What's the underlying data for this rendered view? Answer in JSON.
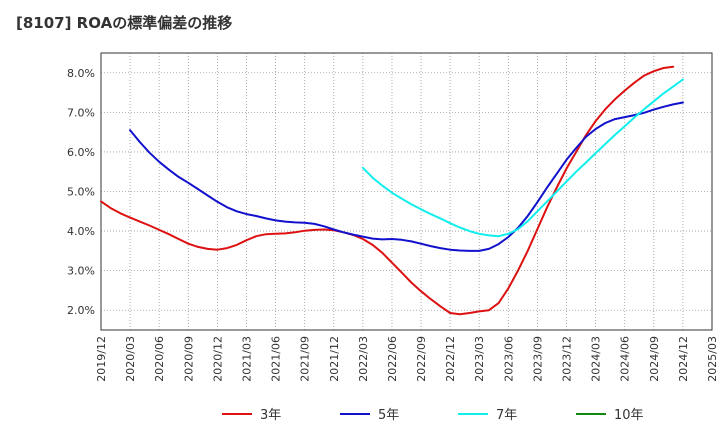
{
  "title": "[8107]  ROAの標準偏差の推移",
  "chart_data": {
    "type": "line",
    "title": "[8107]  ROAの標準偏差の推移",
    "xlabel": "",
    "ylabel": "",
    "x_ticks": [
      "2019/12",
      "2020/03",
      "2020/06",
      "2020/09",
      "2020/12",
      "2021/03",
      "2021/06",
      "2021/09",
      "2021/12",
      "2022/03",
      "2022/06",
      "2022/09",
      "2022/12",
      "2023/03",
      "2023/06",
      "2023/09",
      "2023/12",
      "2024/03",
      "2024/06",
      "2024/09",
      "2024/12",
      "2025/03"
    ],
    "y_ticks": [
      "2.0%",
      "3.0%",
      "4.0%",
      "5.0%",
      "6.0%",
      "7.0%",
      "8.0%"
    ],
    "ylim": [
      1.5,
      8.5
    ],
    "grid": true,
    "legend_position": "bottom",
    "series": [
      {
        "name": "3年",
        "color": "#dd1111",
        "points": [
          [
            "2019/12",
            4.75
          ],
          [
            "2020/01",
            4.58
          ],
          [
            "2020/02",
            4.45
          ],
          [
            "2020/03",
            4.34
          ],
          [
            "2020/04",
            4.24
          ],
          [
            "2020/05",
            4.14
          ],
          [
            "2020/06",
            4.03
          ],
          [
            "2020/07",
            3.92
          ],
          [
            "2020/08",
            3.8
          ],
          [
            "2020/09",
            3.68
          ],
          [
            "2020/10",
            3.6
          ],
          [
            "2020/11",
            3.55
          ],
          [
            "2020/12",
            3.53
          ],
          [
            "2021/01",
            3.57
          ],
          [
            "2021/02",
            3.65
          ],
          [
            "2021/03",
            3.77
          ],
          [
            "2021/04",
            3.87
          ],
          [
            "2021/05",
            3.92
          ],
          [
            "2021/06",
            3.93
          ],
          [
            "2021/07",
            3.94
          ],
          [
            "2021/08",
            3.97
          ],
          [
            "2021/09",
            4.01
          ],
          [
            "2021/10",
            4.03
          ],
          [
            "2021/11",
            4.04
          ],
          [
            "2021/12",
            4.02
          ],
          [
            "2022/01",
            3.97
          ],
          [
            "2022/02",
            3.9
          ],
          [
            "2022/03",
            3.8
          ],
          [
            "2022/04",
            3.65
          ],
          [
            "2022/05",
            3.45
          ],
          [
            "2022/06",
            3.2
          ],
          [
            "2022/07",
            2.95
          ],
          [
            "2022/08",
            2.7
          ],
          [
            "2022/09",
            2.48
          ],
          [
            "2022/10",
            2.28
          ],
          [
            "2022/11",
            2.1
          ],
          [
            "2022/12",
            1.93
          ],
          [
            "2023/01",
            1.9
          ],
          [
            "2023/02",
            1.93
          ],
          [
            "2023/03",
            1.97
          ],
          [
            "2023/04",
            2.0
          ],
          [
            "2023/05",
            2.18
          ],
          [
            "2023/06",
            2.55
          ],
          [
            "2023/07",
            3.0
          ],
          [
            "2023/08",
            3.5
          ],
          [
            "2023/09",
            4.05
          ],
          [
            "2023/10",
            4.6
          ],
          [
            "2023/11",
            5.1
          ],
          [
            "2023/12",
            5.58
          ],
          [
            "2024/01",
            6.0
          ],
          [
            "2024/02",
            6.42
          ],
          [
            "2024/03",
            6.78
          ],
          [
            "2024/04",
            7.08
          ],
          [
            "2024/05",
            7.33
          ],
          [
            "2024/06",
            7.55
          ],
          [
            "2024/07",
            7.75
          ],
          [
            "2024/08",
            7.93
          ],
          [
            "2024/09",
            8.04
          ],
          [
            "2024/10",
            8.12
          ],
          [
            "2024/11",
            8.15
          ]
        ]
      },
      {
        "name": "5年",
        "color": "#1111cc",
        "points": [
          [
            "2020/03",
            6.55
          ],
          [
            "2020/04",
            6.25
          ],
          [
            "2020/05",
            5.98
          ],
          [
            "2020/06",
            5.75
          ],
          [
            "2020/07",
            5.55
          ],
          [
            "2020/08",
            5.37
          ],
          [
            "2020/09",
            5.22
          ],
          [
            "2020/10",
            5.06
          ],
          [
            "2020/11",
            4.9
          ],
          [
            "2020/12",
            4.74
          ],
          [
            "2021/01",
            4.6
          ],
          [
            "2021/02",
            4.5
          ],
          [
            "2021/03",
            4.43
          ],
          [
            "2021/04",
            4.38
          ],
          [
            "2021/05",
            4.32
          ],
          [
            "2021/06",
            4.27
          ],
          [
            "2021/07",
            4.24
          ],
          [
            "2021/08",
            4.22
          ],
          [
            "2021/09",
            4.21
          ],
          [
            "2021/10",
            4.18
          ],
          [
            "2021/11",
            4.12
          ],
          [
            "2021/12",
            4.04
          ],
          [
            "2022/01",
            3.97
          ],
          [
            "2022/02",
            3.91
          ],
          [
            "2022/03",
            3.86
          ],
          [
            "2022/04",
            3.81
          ],
          [
            "2022/05",
            3.79
          ],
          [
            "2022/06",
            3.8
          ],
          [
            "2022/07",
            3.78
          ],
          [
            "2022/08",
            3.74
          ],
          [
            "2022/09",
            3.68
          ],
          [
            "2022/10",
            3.62
          ],
          [
            "2022/11",
            3.57
          ],
          [
            "2022/12",
            3.53
          ],
          [
            "2023/01",
            3.51
          ],
          [
            "2023/02",
            3.5
          ],
          [
            "2023/03",
            3.5
          ],
          [
            "2023/04",
            3.55
          ],
          [
            "2023/05",
            3.67
          ],
          [
            "2023/06",
            3.85
          ],
          [
            "2023/07",
            4.08
          ],
          [
            "2023/08",
            4.38
          ],
          [
            "2023/09",
            4.73
          ],
          [
            "2023/10",
            5.1
          ],
          [
            "2023/11",
            5.45
          ],
          [
            "2023/12",
            5.8
          ],
          [
            "2024/01",
            6.1
          ],
          [
            "2024/02",
            6.38
          ],
          [
            "2024/03",
            6.58
          ],
          [
            "2024/04",
            6.73
          ],
          [
            "2024/05",
            6.83
          ],
          [
            "2024/06",
            6.88
          ],
          [
            "2024/07",
            6.93
          ],
          [
            "2024/08",
            6.99
          ],
          [
            "2024/09",
            7.07
          ],
          [
            "2024/10",
            7.14
          ],
          [
            "2024/11",
            7.2
          ],
          [
            "2024/12",
            7.25
          ]
        ]
      },
      {
        "name": "7年",
        "color": "#11eeee",
        "points": [
          [
            "2022/03",
            5.6
          ],
          [
            "2022/04",
            5.35
          ],
          [
            "2022/05",
            5.15
          ],
          [
            "2022/06",
            4.97
          ],
          [
            "2022/07",
            4.82
          ],
          [
            "2022/08",
            4.68
          ],
          [
            "2022/09",
            4.55
          ],
          [
            "2022/10",
            4.43
          ],
          [
            "2022/11",
            4.32
          ],
          [
            "2022/12",
            4.2
          ],
          [
            "2023/01",
            4.09
          ],
          [
            "2023/02",
            4.0
          ],
          [
            "2023/03",
            3.93
          ],
          [
            "2023/04",
            3.89
          ],
          [
            "2023/05",
            3.87
          ],
          [
            "2023/06",
            3.93
          ],
          [
            "2023/07",
            4.05
          ],
          [
            "2023/08",
            4.25
          ],
          [
            "2023/09",
            4.5
          ],
          [
            "2023/10",
            4.75
          ],
          [
            "2023/11",
            5.0
          ],
          [
            "2023/12",
            5.25
          ],
          [
            "2024/01",
            5.5
          ],
          [
            "2024/02",
            5.73
          ],
          [
            "2024/03",
            5.97
          ],
          [
            "2024/04",
            6.2
          ],
          [
            "2024/05",
            6.43
          ],
          [
            "2024/06",
            6.65
          ],
          [
            "2024/07",
            6.87
          ],
          [
            "2024/08",
            7.08
          ],
          [
            "2024/09",
            7.28
          ],
          [
            "2024/10",
            7.48
          ],
          [
            "2024/11",
            7.65
          ],
          [
            "2024/12",
            7.83
          ]
        ]
      },
      {
        "name": "10年",
        "color": "#118811",
        "points": []
      }
    ]
  }
}
